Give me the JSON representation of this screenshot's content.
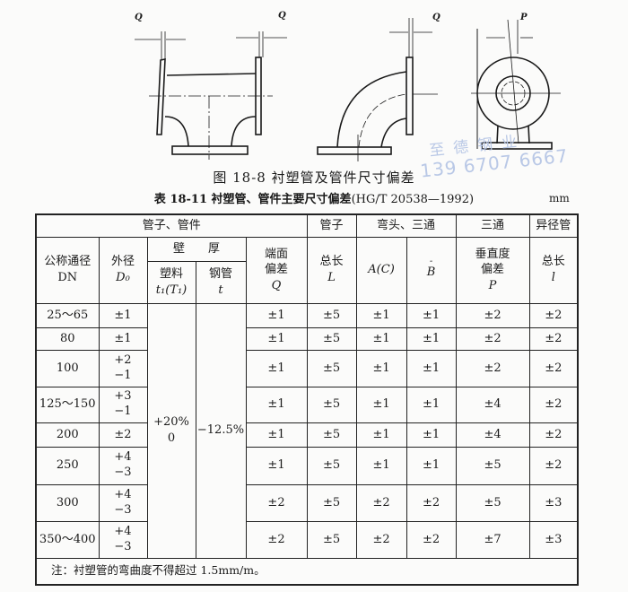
{
  "figure": {
    "labels": {
      "q_left": "Q",
      "q_right": "Q",
      "q_elbow": "Q",
      "p_tee": "P"
    },
    "caption": "图 18-8  衬塑管及管件尺寸偏差"
  },
  "watermark": {
    "line1": "至德钢业",
    "line2": "139 6707 6667"
  },
  "table": {
    "caption_prefix": "表 18-11  衬塑管、管件主要尺寸偏差",
    "caption_standard": "(HG/T 20538—1992)",
    "unit": "mm",
    "group_headers": {
      "pipes_fittings": "管子、管件",
      "pipe": "管子",
      "elbow_tee": "弯头、三通",
      "tee": "三通",
      "reducer": "异径管"
    },
    "wall_thickness": "壁　　厚",
    "columns": {
      "dn": {
        "line1": "公称通径",
        "line2": "DN"
      },
      "od": {
        "line1": "外径",
        "line2": "D₀"
      },
      "plastic": {
        "line1": "塑料",
        "line2": "t₁(T₁)"
      },
      "steel": {
        "line1": "钢管",
        "line2": "t"
      },
      "q": {
        "line1": "端面",
        "line2": "偏差",
        "line3": "Q"
      },
      "l": {
        "line1": "总长",
        "line2": "L"
      },
      "ac": {
        "line1": "A(C)"
      },
      "b": {
        "line1": "B"
      },
      "p": {
        "line1": "垂直度",
        "line2": "偏差",
        "line3": "P"
      },
      "small_l": {
        "line1": "总长",
        "line2": "l"
      }
    },
    "plastic_value": {
      "line1": "+20%",
      "line2": "0"
    },
    "steel_value": "−12.5%",
    "rows": [
      {
        "dn": "25～65",
        "od": [
          "±1"
        ],
        "q": "±1",
        "l": "±5",
        "ac": "±1",
        "b": "±1",
        "p": "±2",
        "small_l": "±2"
      },
      {
        "dn": "80",
        "od": [
          "±1"
        ],
        "q": "±1",
        "l": "±5",
        "ac": "±1",
        "b": "±1",
        "p": "±2",
        "small_l": "±2"
      },
      {
        "dn": "100",
        "od": [
          "+2",
          "−1"
        ],
        "q": "±1",
        "l": "±5",
        "ac": "±1",
        "b": "±1",
        "p": "±2",
        "small_l": "±2"
      },
      {
        "dn": "125～150",
        "od": [
          "+3",
          "−1"
        ],
        "q": "±1",
        "l": "±5",
        "ac": "±1",
        "b": "±1",
        "p": "±4",
        "small_l": "±2"
      },
      {
        "dn": "200",
        "od": [
          "±2"
        ],
        "q": "±1",
        "l": "±5",
        "ac": "±1",
        "b": "±1",
        "p": "±4",
        "small_l": "±2"
      },
      {
        "dn": "250",
        "od": [
          "+4",
          "−3"
        ],
        "q": "±1",
        "l": "±5",
        "ac": "±1",
        "b": "±1",
        "p": "±5",
        "small_l": "±2"
      },
      {
        "dn": "300",
        "od": [
          "+4",
          "−3"
        ],
        "q": "±2",
        "l": "±5",
        "ac": "±2",
        "b": "±2",
        "p": "±5",
        "small_l": "±3"
      },
      {
        "dn": "350～400",
        "od": [
          "+4",
          "−3"
        ],
        "q": "±2",
        "l": "±5",
        "ac": "±2",
        "b": "±2",
        "p": "±7",
        "small_l": "±3"
      }
    ],
    "note": "注：衬塑管的弯曲度不得超过 1.5mm/m。"
  }
}
